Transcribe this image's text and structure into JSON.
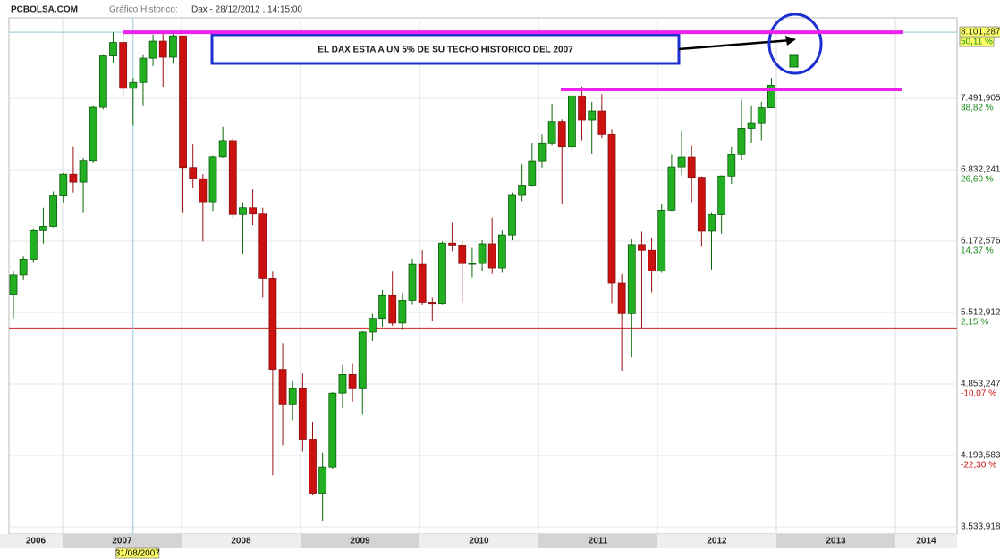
{
  "header": {
    "site": "PCBOLSA.COM",
    "label": "Gráfico Historico:",
    "instrument": "Dax - 28/12/2012 , 14:15:00"
  },
  "chart_data": {
    "type": "candlestick",
    "annotation": "EL DAX ESTA A UN 5% DE SU TECHO HISTORICO DEL 2007",
    "cursor_label": "31/08/2007",
    "years": [
      "2006",
      "2007",
      "2008",
      "2009",
      "2010",
      "2011",
      "2012",
      "2013",
      "2014"
    ],
    "open": [
      5682,
      5860,
      6004,
      6269,
      6309,
      6597,
      6789,
      6716,
      6917,
      7409,
      7883,
      8007,
      7584,
      7638,
      7862,
      8019,
      7871,
      8067,
      6851,
      6748,
      6535,
      6949,
      7097,
      6418,
      6480,
      6422,
      5831,
      4988,
      4669,
      4810,
      4338,
      3843,
      4085,
      4769,
      4941,
      4809,
      5332,
      5458,
      5675,
      5415,
      5625,
      5957,
      5608,
      5598,
      6154,
      6136,
      5965,
      5966,
      6148,
      5925,
      6229,
      6601,
      6688,
      6914,
      7077,
      7272,
      7041,
      7514,
      7294,
      7376,
      7159,
      5785,
      5502,
      6141,
      6088,
      5898,
      6458,
      6856,
      6947,
      6761,
      6264,
      6416,
      6772,
      6970,
      7216,
      7260,
      7405
    ],
    "high": [
      5890,
      6030,
      6290,
      6480,
      6630,
      6800,
      7040,
      6940,
      7420,
      7890,
      8100,
      8150,
      7680,
      7890,
      8080,
      8110,
      8100,
      8060,
      7070,
      6790,
      6960,
      7230,
      7120,
      6530,
      6650,
      6480,
      5890,
      5230,
      4880,
      4950,
      4500,
      4220,
      4780,
      5030,
      5040,
      5340,
      5500,
      5720,
      5890,
      5690,
      6010,
      6090,
      5650,
      6170,
      6340,
      6170,
      6110,
      6180,
      6390,
      6270,
      6620,
      6880,
      7080,
      7160,
      7440,
      7300,
      7530,
      7600,
      7460,
      7530,
      7200,
      5870,
      6190,
      6260,
      6200,
      6520,
      6970,
      7190,
      7060,
      6770,
      6440,
      6780,
      7040,
      7480,
      7420,
      7460,
      7680
    ],
    "low": [
      5460,
      5820,
      5980,
      6150,
      6300,
      6530,
      6620,
      6440,
      6890,
      7390,
      7820,
      7510,
      7240,
      7420,
      7790,
      7600,
      7810,
      6440,
      6660,
      6170,
      6450,
      6940,
      6390,
      6050,
      6320,
      5650,
      4010,
      4290,
      4520,
      4230,
      3830,
      3590,
      4070,
      4630,
      4690,
      4570,
      5250,
      5380,
      5390,
      5350,
      5590,
      5580,
      5430,
      5590,
      6080,
      5610,
      5840,
      5900,
      5870,
      5880,
      6180,
      6540,
      6680,
      6850,
      7060,
      6510,
      7000,
      7100,
      6980,
      7120,
      5600,
      4970,
      5100,
      5370,
      5700,
      5880,
      6450,
      6780,
      6530,
      6120,
      5910,
      6240,
      6700,
      6920,
      7080,
      7100,
      7400
    ],
    "close": [
      5860,
      6004,
      6269,
      6309,
      6597,
      6789,
      6716,
      6917,
      7409,
      7883,
      8007,
      7584,
      7638,
      7862,
      8019,
      7871,
      8067,
      6851,
      6748,
      6535,
      6949,
      7097,
      6418,
      6480,
      6422,
      5831,
      4988,
      4669,
      4810,
      4338,
      3843,
      4085,
      4769,
      4941,
      4809,
      5332,
      5458,
      5675,
      5415,
      5625,
      5957,
      5608,
      5598,
      6154,
      6136,
      5965,
      5966,
      6148,
      5925,
      6229,
      6601,
      6688,
      6914,
      7077,
      7272,
      7041,
      7514,
      7294,
      7376,
      7159,
      5785,
      5502,
      6141,
      6088,
      5898,
      6458,
      6856,
      6947,
      6761,
      6264,
      6416,
      6772,
      6970,
      7216,
      7260,
      7405,
      7612
    ],
    "up_color": "#22b022",
    "down_color": "#cc1111",
    "ylim": [
      3468,
      8234
    ],
    "yticks": [
      {
        "value": 8101.287,
        "label": "8.101,287"
      },
      {
        "value": 7491.905,
        "label": "7.491,905"
      },
      {
        "value": 6832.241,
        "label": "6.832,241"
      },
      {
        "value": 6172.576,
        "label": "6.172,576"
      },
      {
        "value": 5512.912,
        "label": "5.512,912"
      },
      {
        "value": 4853.247,
        "label": "4.853,247"
      },
      {
        "value": 4193.583,
        "label": "4.193,583"
      },
      {
        "value": 3533.918,
        "label": "3.533,918"
      }
    ],
    "y2lim": [
      -35.74,
      52.57
    ],
    "y2ticks": [
      {
        "value": 50.11,
        "label": "50,11 %"
      },
      {
        "value": 38.82,
        "label": "38,82 %"
      },
      {
        "value": 26.6,
        "label": "26,60 %"
      },
      {
        "value": 14.37,
        "label": "14,37 %"
      },
      {
        "value": 2.15,
        "label": "2,15 %"
      },
      {
        "value": -10.07,
        "label": "-10,07 %"
      },
      {
        "value": -22.3,
        "label": "-22,30 %"
      }
    ],
    "reference_line": 5370,
    "resistance_lines": [
      8101,
      7574
    ],
    "grid": true
  }
}
